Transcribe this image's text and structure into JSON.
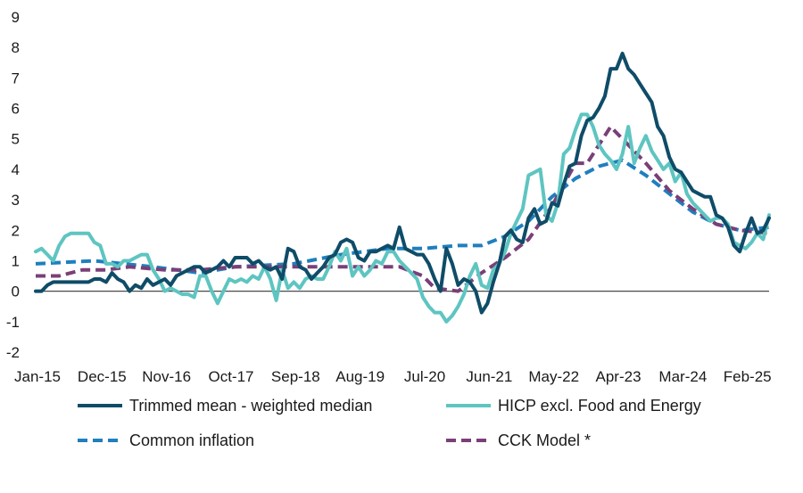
{
  "chart_data": {
    "type": "line",
    "title": "",
    "xlabel": "",
    "ylabel": "",
    "ylim": [
      -2,
      9
    ],
    "yticks": [
      -2,
      -1,
      0,
      1,
      2,
      3,
      4,
      5,
      6,
      7,
      8,
      9
    ],
    "x_tick_labels": [
      "Jan-15",
      "Dec-15",
      "Nov-16",
      "Oct-17",
      "Sep-18",
      "Aug-19",
      "Jul-20",
      "Jun-21",
      "May-22",
      "Apr-23",
      "Mar-24",
      "Feb-25"
    ],
    "x_tick_months": [
      0,
      11,
      22,
      33,
      44,
      55,
      66,
      77,
      88,
      99,
      110,
      121
    ],
    "x_range_months": [
      0,
      121
    ],
    "grid": false,
    "legend_position": "bottom",
    "series": [
      {
        "name": "Trimmed mean - weighted median",
        "style": "solid",
        "color": "#0f4c68",
        "points": [
          [
            0,
            0.0
          ],
          [
            1,
            0.0
          ],
          [
            2,
            0.2
          ],
          [
            3,
            0.3
          ],
          [
            4,
            0.3
          ],
          [
            5,
            0.3
          ],
          [
            6,
            0.3
          ],
          [
            7,
            0.3
          ],
          [
            8,
            0.3
          ],
          [
            9,
            0.3
          ],
          [
            10,
            0.4
          ],
          [
            11,
            0.4
          ],
          [
            12,
            0.3
          ],
          [
            13,
            0.6
          ],
          [
            14,
            0.4
          ],
          [
            15,
            0.3
          ],
          [
            16,
            0.0
          ],
          [
            17,
            0.2
          ],
          [
            18,
            0.1
          ],
          [
            19,
            0.4
          ],
          [
            20,
            0.2
          ],
          [
            21,
            0.3
          ],
          [
            22,
            0.4
          ],
          [
            23,
            0.2
          ],
          [
            24,
            0.5
          ],
          [
            25,
            0.6
          ],
          [
            26,
            0.7
          ],
          [
            27,
            0.8
          ],
          [
            28,
            0.8
          ],
          [
            29,
            0.6
          ],
          [
            30,
            0.7
          ],
          [
            31,
            0.8
          ],
          [
            32,
            1.0
          ],
          [
            33,
            0.8
          ],
          [
            34,
            1.1
          ],
          [
            35,
            1.1
          ],
          [
            36,
            1.1
          ],
          [
            37,
            0.9
          ],
          [
            38,
            1.0
          ],
          [
            39,
            0.8
          ],
          [
            40,
            0.7
          ],
          [
            41,
            0.8
          ],
          [
            42,
            0.4
          ],
          [
            43,
            1.4
          ],
          [
            44,
            1.3
          ],
          [
            45,
            0.8
          ],
          [
            46,
            0.7
          ],
          [
            47,
            0.4
          ],
          [
            48,
            0.6
          ],
          [
            49,
            0.8
          ],
          [
            50,
            1.1
          ],
          [
            51,
            1.2
          ],
          [
            52,
            1.6
          ],
          [
            53,
            1.7
          ],
          [
            54,
            1.6
          ],
          [
            55,
            1.1
          ],
          [
            56,
            1.0
          ],
          [
            57,
            1.3
          ],
          [
            58,
            1.3
          ],
          [
            59,
            1.4
          ],
          [
            60,
            1.5
          ],
          [
            61,
            1.4
          ],
          [
            62,
            2.1
          ],
          [
            63,
            1.4
          ],
          [
            64,
            1.3
          ],
          [
            65,
            1.2
          ],
          [
            66,
            1.2
          ],
          [
            67,
            0.9
          ],
          [
            68,
            0.4
          ],
          [
            69,
            0.0
          ],
          [
            70,
            1.4
          ],
          [
            71,
            0.9
          ],
          [
            72,
            0.2
          ],
          [
            73,
            0.4
          ],
          [
            74,
            0.3
          ],
          [
            75,
            0.0
          ],
          [
            76,
            -0.7
          ],
          [
            77,
            -0.4
          ],
          [
            78,
            0.3
          ],
          [
            79,
            0.9
          ],
          [
            80,
            1.8
          ],
          [
            81,
            2.0
          ],
          [
            82,
            1.7
          ],
          [
            83,
            1.6
          ],
          [
            84,
            2.4
          ],
          [
            85,
            2.7
          ],
          [
            86,
            2.2
          ],
          [
            87,
            2.3
          ],
          [
            88,
            2.9
          ],
          [
            89,
            2.8
          ],
          [
            90,
            3.5
          ],
          [
            91,
            4.1
          ],
          [
            92,
            4.2
          ],
          [
            93,
            5.1
          ],
          [
            94,
            5.6
          ],
          [
            95,
            5.7
          ],
          [
            96,
            6.0
          ],
          [
            97,
            6.4
          ],
          [
            98,
            7.3
          ],
          [
            99,
            7.3
          ],
          [
            100,
            7.8
          ],
          [
            101,
            7.3
          ],
          [
            102,
            7.1
          ],
          [
            103,
            6.8
          ],
          [
            104,
            6.5
          ],
          [
            105,
            6.2
          ],
          [
            106,
            5.4
          ],
          [
            107,
            5.1
          ],
          [
            108,
            4.4
          ],
          [
            109,
            4.0
          ],
          [
            110,
            3.9
          ],
          [
            111,
            3.6
          ],
          [
            112,
            3.3
          ],
          [
            113,
            3.2
          ],
          [
            114,
            3.1
          ],
          [
            115,
            3.1
          ],
          [
            116,
            2.5
          ],
          [
            117,
            2.4
          ],
          [
            118,
            2.1
          ],
          [
            119,
            1.5
          ],
          [
            120,
            1.3
          ],
          [
            121,
            1.9
          ],
          [
            122,
            2.4
          ],
          [
            123,
            1.9
          ],
          [
            124,
            2.0
          ],
          [
            125,
            2.4
          ]
        ]
      },
      {
        "name": "HICP excl. Food and Energy",
        "style": "solid",
        "color": "#5ec5c1",
        "points": [
          [
            0,
            1.3
          ],
          [
            1,
            1.4
          ],
          [
            2,
            1.2
          ],
          [
            3,
            1.0
          ],
          [
            4,
            1.5
          ],
          [
            5,
            1.8
          ],
          [
            6,
            1.9
          ],
          [
            7,
            1.9
          ],
          [
            8,
            1.9
          ],
          [
            9,
            1.9
          ],
          [
            10,
            1.6
          ],
          [
            11,
            1.5
          ],
          [
            12,
            0.9
          ],
          [
            13,
            0.9
          ],
          [
            14,
            0.8
          ],
          [
            15,
            1.0
          ],
          [
            16,
            1.0
          ],
          [
            17,
            1.1
          ],
          [
            18,
            1.2
          ],
          [
            19,
            1.2
          ],
          [
            20,
            0.7
          ],
          [
            21,
            0.4
          ],
          [
            22,
            0.0
          ],
          [
            23,
            0.1
          ],
          [
            24,
            0.0
          ],
          [
            25,
            -0.1
          ],
          [
            26,
            -0.1
          ],
          [
            27,
            -0.2
          ],
          [
            28,
            0.5
          ],
          [
            29,
            0.5
          ],
          [
            30,
            0.0
          ],
          [
            31,
            -0.4
          ],
          [
            32,
            0.0
          ],
          [
            33,
            0.4
          ],
          [
            34,
            0.3
          ],
          [
            35,
            0.4
          ],
          [
            36,
            0.3
          ],
          [
            37,
            0.5
          ],
          [
            38,
            0.4
          ],
          [
            39,
            0.8
          ],
          [
            40,
            0.4
          ],
          [
            41,
            -0.3
          ],
          [
            42,
            0.7
          ],
          [
            43,
            0.1
          ],
          [
            44,
            0.3
          ],
          [
            45,
            0.1
          ],
          [
            46,
            0.4
          ],
          [
            47,
            0.5
          ],
          [
            48,
            0.4
          ],
          [
            49,
            0.4
          ],
          [
            50,
            0.8
          ],
          [
            51,
            1.3
          ],
          [
            52,
            1.0
          ],
          [
            53,
            1.4
          ],
          [
            54,
            0.5
          ],
          [
            55,
            0.8
          ],
          [
            56,
            0.5
          ],
          [
            57,
            0.7
          ],
          [
            58,
            1.0
          ],
          [
            59,
            0.9
          ],
          [
            60,
            1.3
          ],
          [
            61,
            1.3
          ],
          [
            62,
            1.0
          ],
          [
            63,
            0.8
          ],
          [
            64,
            0.6
          ],
          [
            65,
            0.4
          ],
          [
            66,
            -0.2
          ],
          [
            67,
            -0.5
          ],
          [
            68,
            -0.7
          ],
          [
            69,
            -0.7
          ],
          [
            70,
            -1.0
          ],
          [
            71,
            -0.8
          ],
          [
            72,
            -0.5
          ],
          [
            73,
            -0.1
          ],
          [
            74,
            0.5
          ],
          [
            75,
            0.9
          ],
          [
            76,
            0.2
          ],
          [
            77,
            0.1
          ],
          [
            78,
            0.7
          ],
          [
            79,
            0.9
          ],
          [
            80,
            1.3
          ],
          [
            81,
            1.9
          ],
          [
            82,
            2.3
          ],
          [
            83,
            2.7
          ],
          [
            84,
            3.8
          ],
          [
            85,
            3.9
          ],
          [
            86,
            4.0
          ],
          [
            87,
            2.5
          ],
          [
            88,
            2.3
          ],
          [
            89,
            2.9
          ],
          [
            90,
            4.5
          ],
          [
            91,
            4.7
          ],
          [
            92,
            5.3
          ],
          [
            93,
            5.8
          ],
          [
            94,
            5.8
          ],
          [
            95,
            5.4
          ],
          [
            96,
            4.8
          ],
          [
            97,
            4.5
          ],
          [
            98,
            4.3
          ],
          [
            99,
            4.0
          ],
          [
            100,
            4.5
          ],
          [
            101,
            5.4
          ],
          [
            102,
            4.2
          ],
          [
            103,
            4.7
          ],
          [
            104,
            5.1
          ],
          [
            105,
            4.6
          ],
          [
            106,
            4.3
          ],
          [
            107,
            4.0
          ],
          [
            108,
            4.2
          ],
          [
            109,
            3.6
          ],
          [
            110,
            3.9
          ],
          [
            111,
            3.2
          ],
          [
            112,
            2.9
          ],
          [
            113,
            2.7
          ],
          [
            114,
            2.5
          ],
          [
            115,
            2.3
          ],
          [
            116,
            2.4
          ],
          [
            117,
            2.4
          ],
          [
            118,
            2.2
          ],
          [
            119,
            1.6
          ],
          [
            120,
            1.5
          ],
          [
            121,
            1.4
          ],
          [
            122,
            1.6
          ],
          [
            123,
            1.9
          ],
          [
            124,
            1.7
          ],
          [
            125,
            2.5
          ]
        ]
      },
      {
        "name": "Common inflation",
        "style": "dashed",
        "color": "#1f7fbf",
        "points": [
          [
            0,
            0.9
          ],
          [
            10,
            1.0
          ],
          [
            20,
            0.8
          ],
          [
            28,
            0.6
          ],
          [
            34,
            0.8
          ],
          [
            44,
            0.9
          ],
          [
            52,
            1.2
          ],
          [
            60,
            1.4
          ],
          [
            66,
            1.4
          ],
          [
            72,
            1.5
          ],
          [
            76,
            1.5
          ],
          [
            80,
            1.8
          ],
          [
            84,
            2.3
          ],
          [
            88,
            3.1
          ],
          [
            92,
            3.7
          ],
          [
            96,
            4.1
          ],
          [
            100,
            4.3
          ],
          [
            104,
            3.8
          ],
          [
            108,
            3.2
          ],
          [
            112,
            2.6
          ],
          [
            116,
            2.2
          ],
          [
            120,
            2.0
          ],
          [
            125,
            2.1
          ]
        ]
      },
      {
        "name": "CCK Model *",
        "style": "dashed",
        "color": "#7a3f78",
        "points": [
          [
            0,
            0.5
          ],
          [
            4,
            0.5
          ],
          [
            8,
            0.7
          ],
          [
            12,
            0.7
          ],
          [
            16,
            0.8
          ],
          [
            22,
            0.7
          ],
          [
            28,
            0.7
          ],
          [
            34,
            0.8
          ],
          [
            40,
            0.8
          ],
          [
            48,
            0.8
          ],
          [
            56,
            0.8
          ],
          [
            62,
            0.8
          ],
          [
            66,
            0.5
          ],
          [
            68,
            0.1
          ],
          [
            72,
            0.0
          ],
          [
            76,
            0.6
          ],
          [
            80,
            1.1
          ],
          [
            84,
            1.7
          ],
          [
            88,
            2.8
          ],
          [
            92,
            4.2
          ],
          [
            94,
            4.2
          ],
          [
            98,
            5.4
          ],
          [
            100,
            5.0
          ],
          [
            104,
            4.2
          ],
          [
            108,
            3.3
          ],
          [
            112,
            2.7
          ],
          [
            116,
            2.2
          ],
          [
            120,
            2.0
          ],
          [
            125,
            1.9
          ]
        ]
      }
    ]
  }
}
